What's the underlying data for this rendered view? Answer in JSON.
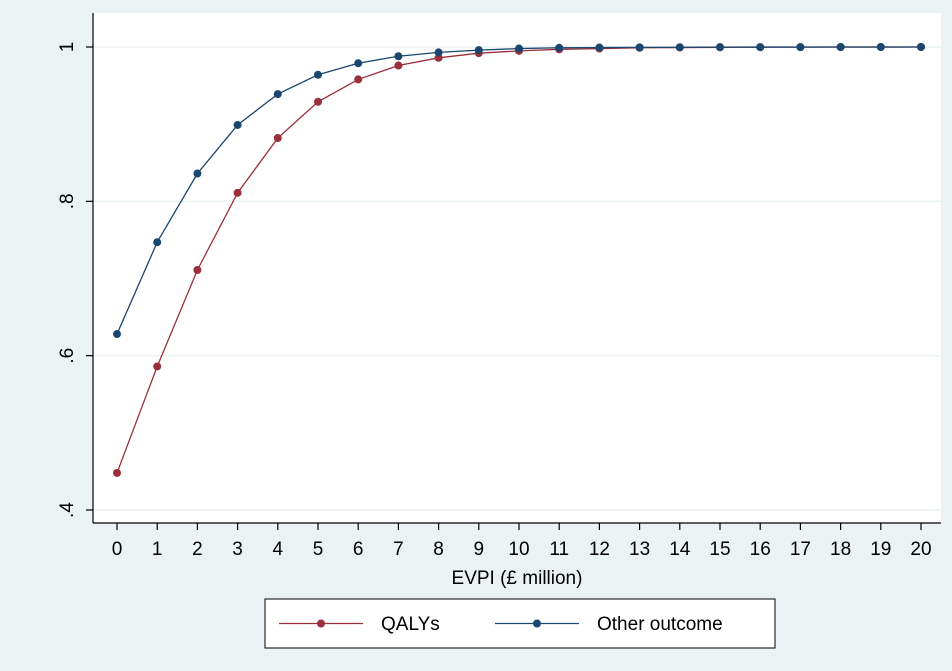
{
  "chart_data": {
    "type": "line",
    "xlabel": "EVPI (£ million)",
    "ylabel": "",
    "x": [
      0,
      1,
      2,
      3,
      4,
      5,
      6,
      7,
      8,
      9,
      10,
      11,
      12,
      13,
      14,
      15,
      16,
      17,
      18,
      19,
      20
    ],
    "xticks": [
      "0",
      "1",
      "2",
      "3",
      "4",
      "5",
      "6",
      "7",
      "8",
      "9",
      "10",
      "11",
      "12",
      "13",
      "14",
      "15",
      "16",
      "17",
      "18",
      "19",
      "20"
    ],
    "xlim": [
      0,
      20
    ],
    "yticks": [
      {
        "value": 0.4,
        "label": ".4"
      },
      {
        "value": 0.6,
        "label": ".6"
      },
      {
        "value": 0.8,
        "label": ".8"
      },
      {
        "value": 1.0,
        "label": "1"
      }
    ],
    "ylim": [
      0.4,
      1.0
    ],
    "grid": true,
    "legend_position": "bottom",
    "series": [
      {
        "name": "QALYs",
        "color": "#9b2f3a",
        "values": [
          0.448,
          0.586,
          0.711,
          0.811,
          0.882,
          0.929,
          0.958,
          0.976,
          0.986,
          0.992,
          0.995,
          0.997,
          0.998,
          0.999,
          0.9993,
          0.9996,
          0.9997,
          0.9998,
          0.9999,
          0.9999,
          1.0
        ]
      },
      {
        "name": "Other outcome",
        "color": "#1a476f",
        "values": [
          0.628,
          0.747,
          0.836,
          0.899,
          0.939,
          0.964,
          0.979,
          0.988,
          0.993,
          0.996,
          0.998,
          0.999,
          0.9993,
          0.9995,
          0.9997,
          0.9998,
          0.9999,
          0.9999,
          1.0,
          1.0,
          1.0
        ]
      }
    ]
  }
}
